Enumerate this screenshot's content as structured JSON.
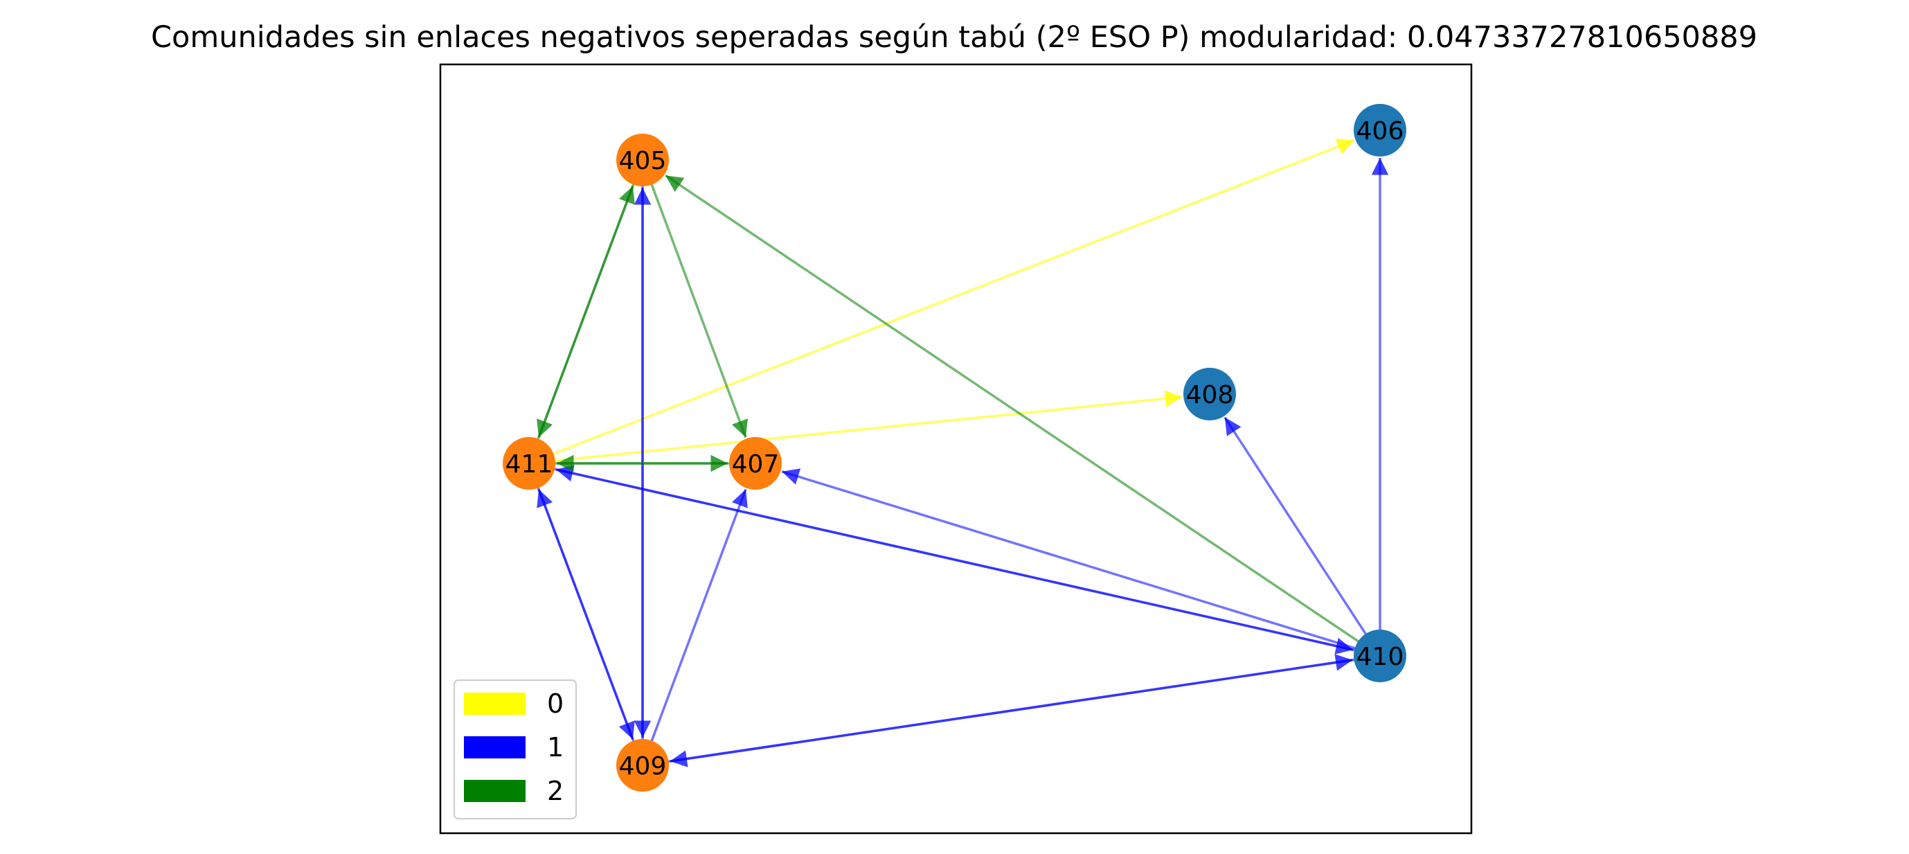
{
  "title": "Comunidades sin enlaces negativos seperadas según tabú (2º ESO P) modularidad: 0.04733727810650889",
  "colors": {
    "community_orange": "#ff7f0e",
    "community_blue": "#1f77b4",
    "edge_0": "#ffff00",
    "edge_1": "#0000ff",
    "edge_2": "#008000"
  },
  "nodes": [
    {
      "id": "405",
      "label": "405",
      "community": "orange"
    },
    {
      "id": "406",
      "label": "406",
      "community": "blue"
    },
    {
      "id": "407",
      "label": "407",
      "community": "orange"
    },
    {
      "id": "408",
      "label": "408",
      "community": "blue"
    },
    {
      "id": "409",
      "label": "409",
      "community": "orange"
    },
    {
      "id": "410",
      "label": "410",
      "community": "blue"
    },
    {
      "id": "411",
      "label": "411",
      "community": "orange"
    }
  ],
  "edges": [
    {
      "source": "411",
      "target": "406",
      "type": 0
    },
    {
      "source": "411",
      "target": "408",
      "type": 0
    },
    {
      "source": "405",
      "target": "409",
      "type": 1
    },
    {
      "source": "409",
      "target": "405",
      "type": 1
    },
    {
      "source": "409",
      "target": "407",
      "type": 1
    },
    {
      "source": "409",
      "target": "411",
      "type": 1
    },
    {
      "source": "411",
      "target": "409",
      "type": 1
    },
    {
      "source": "410",
      "target": "406",
      "type": 1
    },
    {
      "source": "410",
      "target": "408",
      "type": 1
    },
    {
      "source": "410",
      "target": "407",
      "type": 1
    },
    {
      "source": "410",
      "target": "411",
      "type": 1
    },
    {
      "source": "411",
      "target": "410",
      "type": 1
    },
    {
      "source": "410",
      "target": "409",
      "type": 1
    },
    {
      "source": "409",
      "target": "410",
      "type": 1
    },
    {
      "source": "405",
      "target": "411",
      "type": 2
    },
    {
      "source": "411",
      "target": "405",
      "type": 2
    },
    {
      "source": "405",
      "target": "407",
      "type": 2
    },
    {
      "source": "411",
      "target": "407",
      "type": 2
    },
    {
      "source": "407",
      "target": "411",
      "type": 2
    },
    {
      "source": "410",
      "target": "405",
      "type": 2
    }
  ],
  "legend": [
    {
      "label": "0",
      "color": "#ffff00"
    },
    {
      "label": "1",
      "color": "#0000ff"
    },
    {
      "label": "2",
      "color": "#008000"
    }
  ]
}
